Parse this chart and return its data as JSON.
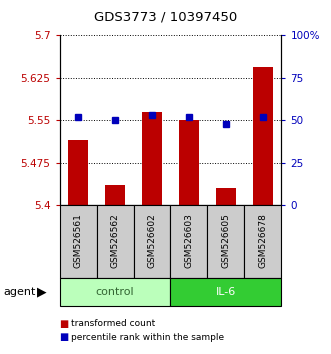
{
  "title": "GDS3773 / 10397450",
  "samples": [
    "GSM526561",
    "GSM526562",
    "GSM526602",
    "GSM526603",
    "GSM526605",
    "GSM526678"
  ],
  "transformed_counts": [
    5.515,
    5.435,
    5.565,
    5.55,
    5.43,
    5.645
  ],
  "percentile_ranks": [
    52,
    50,
    53,
    52,
    48,
    52
  ],
  "ylim_left": [
    5.4,
    5.7
  ],
  "ylim_right": [
    0,
    100
  ],
  "yticks_left": [
    5.4,
    5.475,
    5.55,
    5.625,
    5.7
  ],
  "yticks_right": [
    0,
    25,
    50,
    75,
    100
  ],
  "ytick_labels_right": [
    "0",
    "25",
    "50",
    "75",
    "100%"
  ],
  "bar_color": "#bb0000",
  "dot_color": "#0000bb",
  "control_color": "#bbffbb",
  "il6_color": "#33cc33",
  "sample_box_color": "#cccccc",
  "bar_width": 0.55,
  "agent_label": "agent",
  "legend_items": [
    "transformed count",
    "percentile rank within the sample"
  ]
}
